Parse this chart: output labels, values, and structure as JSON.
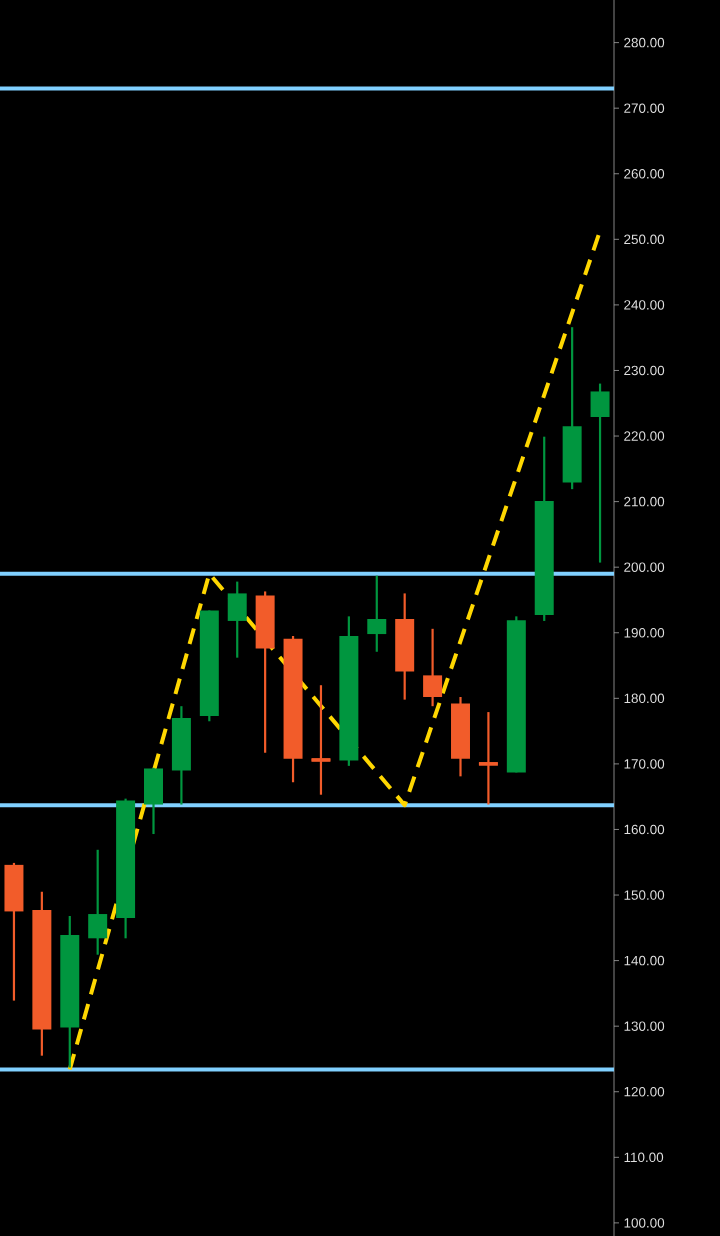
{
  "chart_data": {
    "type": "candlestick",
    "categories": [
      null,
      null,
      null,
      null,
      null,
      null,
      null,
      null,
      null,
      null,
      null,
      null,
      null,
      null,
      null,
      null,
      null,
      null,
      null,
      null,
      null,
      null
    ],
    "ohlc": [
      [
        154.6,
        154.9,
        133.9,
        147.5
      ],
      [
        147.7,
        150.5,
        125.5,
        129.5
      ],
      [
        129.8,
        146.8,
        123.7,
        143.9
      ],
      [
        143.4,
        156.9,
        140.9,
        147.1
      ],
      [
        146.5,
        164.7,
        143.4,
        164.4
      ],
      [
        163.8,
        169.4,
        159.3,
        169.3
      ],
      [
        169.0,
        178.8,
        163.8,
        177.0
      ],
      [
        177.3,
        193.4,
        176.5,
        193.4
      ],
      [
        191.8,
        197.8,
        186.2,
        196.0
      ],
      [
        195.7,
        196.3,
        171.7,
        187.6
      ],
      [
        189.1,
        189.5,
        167.2,
        170.8
      ],
      [
        170.7,
        182.0,
        165.3,
        170.5
      ],
      [
        170.5,
        192.5,
        169.7,
        189.5
      ],
      [
        189.8,
        198.7,
        187.1,
        192.1
      ],
      [
        192.1,
        196.0,
        179.8,
        184.1
      ],
      [
        183.5,
        190.6,
        178.8,
        180.2
      ],
      [
        179.2,
        180.2,
        168.1,
        170.8
      ],
      [
        170.1,
        177.9,
        163.8,
        169.9
      ],
      [
        168.7,
        192.5,
        168.7,
        191.9
      ],
      [
        192.7,
        219.9,
        191.8,
        210.1
      ],
      [
        212.9,
        236.6,
        211.9,
        221.5
      ],
      [
        222.9,
        228.0,
        200.7,
        226.8
      ]
    ],
    "colors": [
      "#f25c2a",
      "#f25c2a",
      "#00963f",
      "#00963f",
      "#00963f",
      "#00963f",
      "#00963f",
      "#00963f",
      "#00963f",
      "#f25c2a",
      "#f25c2a",
      "#f25c2a",
      "#00963f",
      "#00963f",
      "#f25c2a",
      "#f25c2a",
      "#f25c2a",
      "#f25c2a",
      "#00963f",
      "#00963f",
      "#00963f",
      "#00963f"
    ],
    "series": [
      {
        "type": "line",
        "values": [
          null,
          null,
          123.4,
          null,
          null,
          null,
          null,
          199.0,
          null,
          null,
          null,
          null,
          null,
          null,
          163.7,
          null,
          null,
          null,
          null,
          null,
          null,
          251.3
        ],
        "color": "#ffd700",
        "line_style": "dashed"
      }
    ],
    "ylim": [
      98,
      286.5
    ],
    "yticks": [
      {
        "value": 100,
        "label": "100.00"
      },
      {
        "value": 110,
        "label": "110.00"
      },
      {
        "value": 120,
        "label": "120.00"
      },
      {
        "value": 130,
        "label": "130.00"
      },
      {
        "value": 140,
        "label": "140.00"
      },
      {
        "value": 150,
        "label": "150.00"
      },
      {
        "value": 160,
        "label": "160.00"
      },
      {
        "value": 170,
        "label": "170.00"
      },
      {
        "value": 180,
        "label": "180.00"
      },
      {
        "value": 190,
        "label": "190.00"
      },
      {
        "value": 200,
        "label": "200.00"
      },
      {
        "value": 210,
        "label": "210.00"
      },
      {
        "value": 220,
        "label": "220.00"
      },
      {
        "value": 230,
        "label": "230.00"
      },
      {
        "value": 240,
        "label": "240.00"
      },
      {
        "value": 250,
        "label": "250.00"
      },
      {
        "value": 260,
        "label": "260.00"
      },
      {
        "value": 270,
        "label": "270.00"
      },
      {
        "value": 280,
        "label": "280.00"
      }
    ],
    "ref_lines": [
      {
        "axis": "y",
        "value": 273.0,
        "color": "#80d0ff"
      },
      {
        "axis": "y",
        "value": 199.0,
        "color": "#80d0ff"
      },
      {
        "axis": "y",
        "value": 163.7,
        "color": "#80d0ff"
      },
      {
        "axis": "y",
        "value": 123.4,
        "color": "#80d0ff"
      }
    ],
    "tick_labels": "y"
  }
}
